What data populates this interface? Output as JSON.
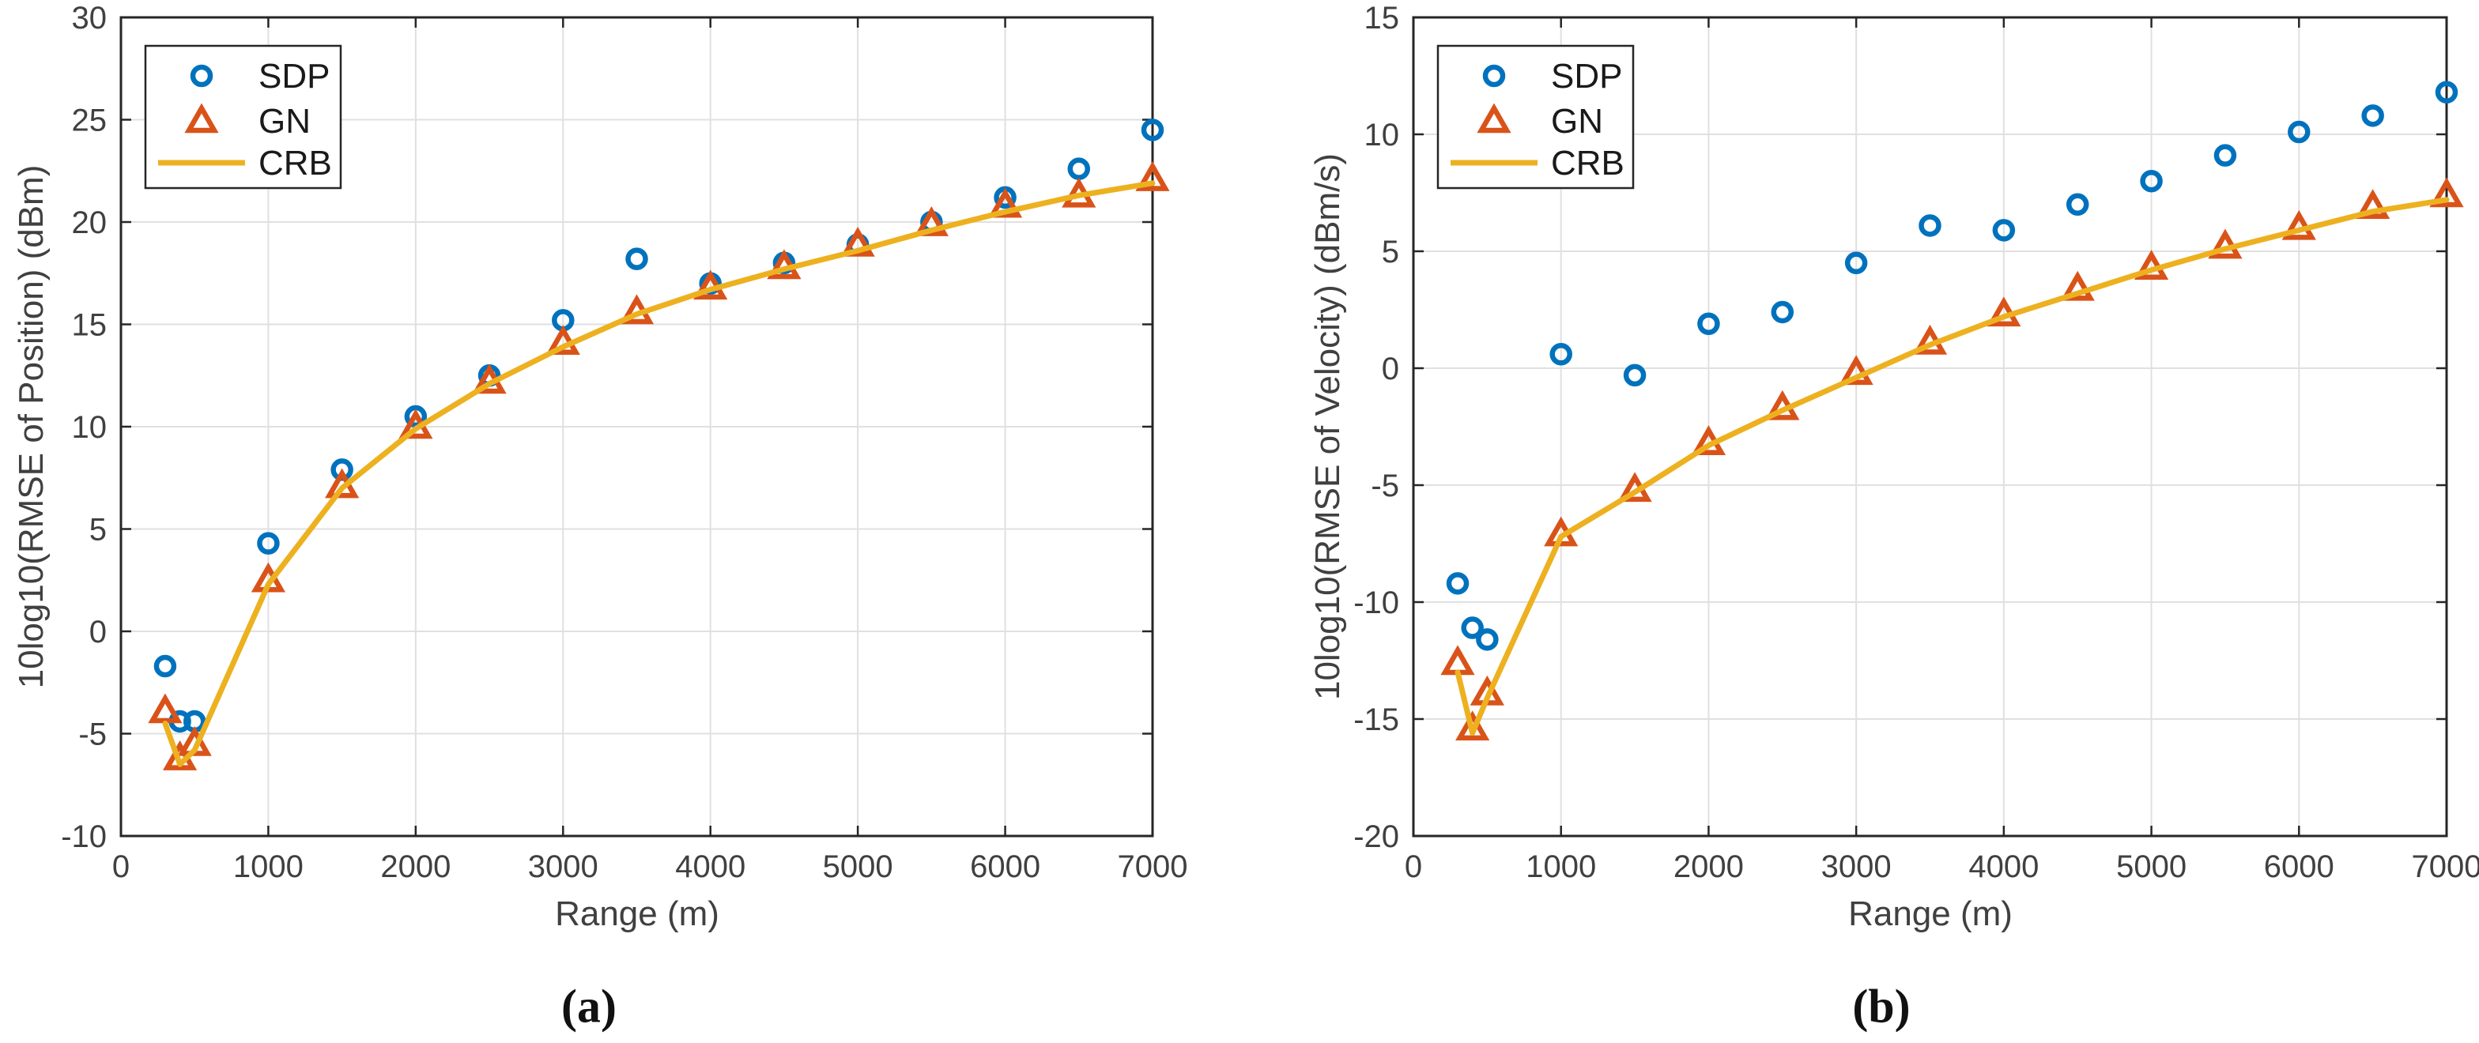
{
  "figure": {
    "background": "#ffffff"
  },
  "colors": {
    "sdp": "#0072BD",
    "gn": "#D95319",
    "crb": "#EDB120",
    "grid": "#E0E0E0",
    "axis": "#262626",
    "tick_label": "#404040",
    "legend_text": "#1a1a1a",
    "caption": "#111111"
  },
  "chart_data": [
    {
      "type": "scatter",
      "caption": "(a)",
      "xlabel": "Range (m)",
      "ylabel": "10log10(RMSE of Position) (dBm)",
      "xlim": [
        0,
        7000
      ],
      "ylim": [
        -10,
        30
      ],
      "xticks": [
        0,
        1000,
        2000,
        3000,
        4000,
        5000,
        6000,
        7000
      ],
      "yticks": [
        -10,
        -5,
        0,
        5,
        10,
        15,
        20,
        25,
        30
      ],
      "grid": true,
      "legend_position": "northwest",
      "legend": [
        "SDP",
        "GN",
        "CRB"
      ],
      "x": [
        300,
        400,
        500,
        1000,
        1500,
        2000,
        2500,
        3000,
        3500,
        4000,
        4500,
        5000,
        5500,
        6000,
        6500,
        7000
      ],
      "series": [
        {
          "name": "SDP",
          "marker": "circle",
          "values": [
            -1.7,
            -4.4,
            -4.4,
            4.3,
            7.9,
            10.5,
            12.5,
            15.2,
            18.2,
            17.0,
            18.0,
            18.9,
            20.0,
            21.2,
            22.6,
            24.5
          ]
        },
        {
          "name": "GN",
          "marker": "triangle",
          "values": [
            -3.9,
            -6.2,
            -5.5,
            2.5,
            7.1,
            10.0,
            12.2,
            14.1,
            15.6,
            16.8,
            17.8,
            18.9,
            19.9,
            20.8,
            21.3,
            22.1
          ]
        },
        {
          "name": "CRB",
          "marker": "line",
          "values": [
            -4.5,
            -6.5,
            -5.8,
            2.3,
            7.0,
            9.9,
            12.1,
            13.9,
            15.5,
            16.7,
            17.7,
            18.6,
            19.6,
            20.5,
            21.3,
            21.9
          ]
        }
      ]
    },
    {
      "type": "scatter",
      "caption": "(b)",
      "xlabel": "Range (m)",
      "ylabel": "10log10(RMSE of Velocity) (dBm/s)",
      "xlim": [
        0,
        7000
      ],
      "ylim": [
        -20,
        15
      ],
      "xticks": [
        0,
        1000,
        2000,
        3000,
        4000,
        5000,
        6000,
        7000
      ],
      "yticks": [
        -20,
        -15,
        -10,
        -5,
        0,
        5,
        10,
        15
      ],
      "grid": true,
      "legend_position": "northwest",
      "legend": [
        "SDP",
        "GN",
        "CRB"
      ],
      "x": [
        300,
        400,
        500,
        1000,
        1500,
        2000,
        2500,
        3000,
        3500,
        4000,
        4500,
        5000,
        5500,
        6000,
        6500,
        7000
      ],
      "series": [
        {
          "name": "SDP",
          "marker": "circle",
          "values": [
            -9.2,
            -11.1,
            -11.6,
            0.6,
            -0.3,
            1.9,
            2.4,
            4.5,
            6.1,
            5.9,
            7.0,
            8.0,
            9.1,
            10.1,
            10.8,
            11.8
          ]
        },
        {
          "name": "GN",
          "marker": "triangle",
          "values": [
            -12.6,
            -15.4,
            -13.9,
            -7.1,
            -5.2,
            -3.2,
            -1.7,
            -0.2,
            1.1,
            2.3,
            3.4,
            4.3,
            5.2,
            6.0,
            6.9,
            7.4
          ]
        },
        {
          "name": "CRB",
          "marker": "line",
          "values": [
            -13.0,
            -15.6,
            -14.1,
            -7.2,
            -5.3,
            -3.3,
            -1.8,
            -0.4,
            1.0,
            2.2,
            3.2,
            4.2,
            5.1,
            5.9,
            6.7,
            7.2
          ]
        }
      ]
    }
  ]
}
